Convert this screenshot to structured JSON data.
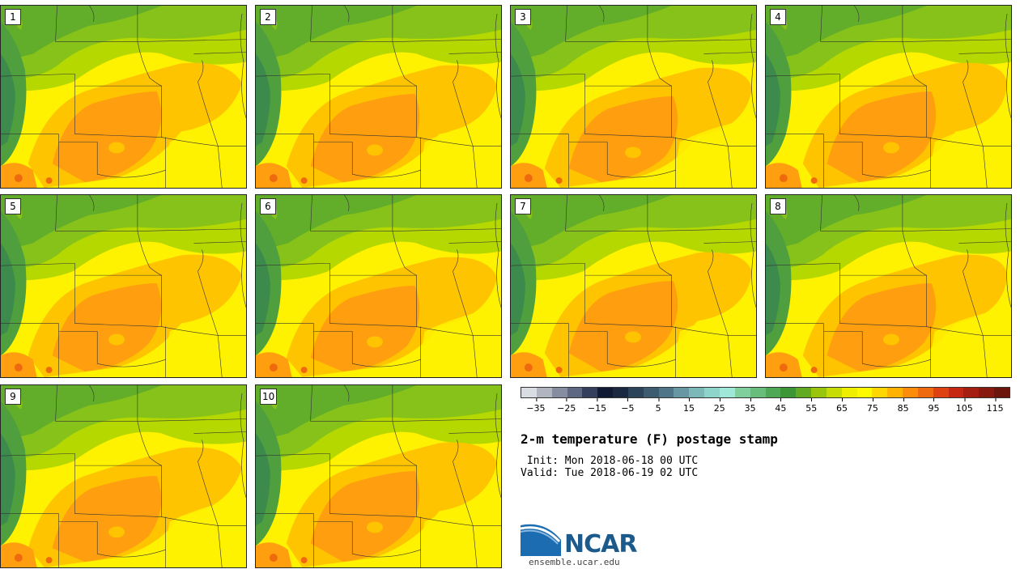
{
  "title": "2-m temperature (F) postage stamp",
  "init": " Init: Mon 2018-06-18 00 UTC",
  "valid": "Valid: Tue 2018-06-19 02 UTC",
  "logo": {
    "text": "NCAR",
    "site": "ensemble.ucar.edu"
  },
  "members": [
    "1",
    "2",
    "3",
    "4",
    "5",
    "6",
    "7",
    "8",
    "9",
    "10"
  ],
  "colorbar": {
    "colors": [
      "#d9dde3",
      "#b0b5bf",
      "#878da0",
      "#5f6882",
      "#343f5e",
      "#101a35",
      "#1a2840",
      "#2c4459",
      "#3e5c70",
      "#4f7588",
      "#6797a3",
      "#7cb8b7",
      "#8fd4cb",
      "#9fe8d8",
      "#7fcf9c",
      "#68bc7c",
      "#4ea856",
      "#3d9636",
      "#62aa22",
      "#99c50c",
      "#c7dc04",
      "#f0ee00",
      "#fff900",
      "#ffd700",
      "#ffb300",
      "#fb8d0b",
      "#ef6a0e",
      "#de4112",
      "#c52713",
      "#a61e12",
      "#88190f",
      "#6b150c"
    ],
    "ticks": [
      "−35",
      "−25",
      "−15",
      "−5",
      "5",
      "15",
      "25",
      "35",
      "45",
      "55",
      "65",
      "75",
      "85",
      "95",
      "105",
      "115"
    ],
    "tick_values": [
      -35,
      -25,
      -15,
      -5,
      5,
      15,
      25,
      35,
      45,
      55,
      65,
      75,
      85,
      95,
      105,
      115
    ],
    "min": -40,
    "max": 120
  }
}
